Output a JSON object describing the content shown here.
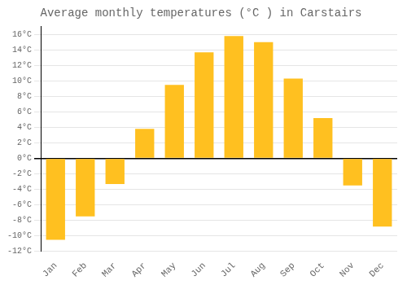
{
  "chart_data": {
    "type": "bar",
    "title": "Average monthly temperatures (°C ) in Carstairs",
    "categories": [
      "Jan",
      "Feb",
      "Mar",
      "Apr",
      "May",
      "Jun",
      "Jul",
      "Aug",
      "Sep",
      "Oct",
      "Nov",
      "Dec"
    ],
    "values": [
      -10.5,
      -7.5,
      -3.3,
      3.8,
      9.5,
      13.7,
      15.8,
      15.0,
      10.3,
      5.2,
      -3.5,
      -8.8
    ],
    "color": "#FFC020",
    "ylim": [
      -12,
      17
    ],
    "yticks": [
      {
        "value": -12,
        "label": "-12°C"
      },
      {
        "value": -10,
        "label": "-10°C"
      },
      {
        "value": -8,
        "label": "-8°C"
      },
      {
        "value": -6,
        "label": "-6°C"
      },
      {
        "value": -4,
        "label": "-4°C"
      },
      {
        "value": -2,
        "label": "-2°C"
      },
      {
        "value": 0,
        "label": "0°C"
      },
      {
        "value": 2,
        "label": "2°C"
      },
      {
        "value": 4,
        "label": "4°C"
      },
      {
        "value": 6,
        "label": "6°C"
      },
      {
        "value": 8,
        "label": "8°C"
      },
      {
        "value": 10,
        "label": "10°C"
      },
      {
        "value": 12,
        "label": "12°C"
      },
      {
        "value": 14,
        "label": "14°C"
      },
      {
        "value": 16,
        "label": "16°C"
      }
    ],
    "grid": true
  }
}
